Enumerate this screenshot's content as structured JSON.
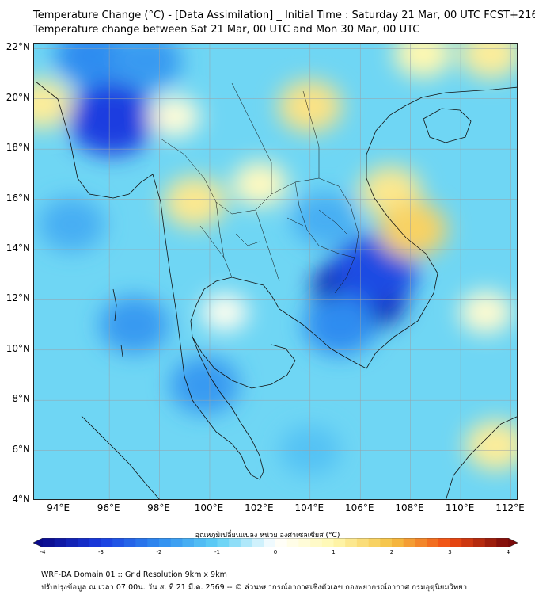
{
  "header": {
    "title_line1": "Temperature Change (°C) - [Data Assimilation] _ Initial Time : Saturday 21 Mar, 00 UTC FCST+216",
    "title_line2": "Temperature change between Sat 21 Mar, 00 UTC and Mon 30 Mar, 00 UTC"
  },
  "map": {
    "lat_labels": [
      "22°N",
      "20°N",
      "18°N",
      "16°N",
      "14°N",
      "12°N",
      "10°N",
      "8°N",
      "6°N",
      "4°N"
    ],
    "lat_values": [
      22,
      20,
      18,
      16,
      14,
      12,
      10,
      8,
      6,
      4
    ],
    "lon_labels": [
      "94°E",
      "96°E",
      "98°E",
      "100°E",
      "102°E",
      "104°E",
      "106°E",
      "108°E",
      "110°E",
      "112°E"
    ],
    "lon_values": [
      94,
      96,
      98,
      100,
      102,
      104,
      106,
      108,
      110,
      112
    ],
    "lon_range": [
      93,
      112.3
    ],
    "lat_range": [
      4,
      22.2
    ],
    "background_color": "#6fd6f4",
    "grid": true,
    "field_patches": [
      {
        "lon": 96.1,
        "lat": 19.2,
        "value": -3.0
      },
      {
        "lon": 95.3,
        "lat": 21.7,
        "value": -2.0
      },
      {
        "lon": 97.5,
        "lat": 21.5,
        "value": -1.8
      },
      {
        "lon": 106.0,
        "lat": 12.3,
        "value": -3.6
      },
      {
        "lon": 106.6,
        "lat": 13.2,
        "value": -2.8
      },
      {
        "lon": 105.2,
        "lat": 11.0,
        "value": -2.0
      },
      {
        "lon": 104.6,
        "lat": 15.2,
        "value": -1.5
      },
      {
        "lon": 97.0,
        "lat": 11.0,
        "value": -1.8
      },
      {
        "lon": 99.8,
        "lat": 8.6,
        "value": -1.8
      },
      {
        "lon": 104.0,
        "lat": 6.0,
        "value": -1.2
      },
      {
        "lon": 94.5,
        "lat": 15.0,
        "value": -1.5
      },
      {
        "lon": 104.0,
        "lat": 19.7,
        "value": 1.4
      },
      {
        "lon": 107.2,
        "lat": 16.3,
        "value": 1.3
      },
      {
        "lon": 108.1,
        "lat": 14.8,
        "value": 1.7
      },
      {
        "lon": 93.3,
        "lat": 19.8,
        "value": 1.2
      },
      {
        "lon": 99.4,
        "lat": 15.9,
        "value": 1.3
      },
      {
        "lon": 102.0,
        "lat": 16.6,
        "value": 0.8
      },
      {
        "lon": 111.2,
        "lat": 21.8,
        "value": 1.2
      },
      {
        "lon": 108.5,
        "lat": 21.8,
        "value": 1.0
      },
      {
        "lon": 111.4,
        "lat": 6.2,
        "value": 1.2
      },
      {
        "lon": 111.0,
        "lat": 11.5,
        "value": 0.6
      },
      {
        "lon": 100.6,
        "lat": 11.5,
        "value": 0.2
      },
      {
        "lon": 98.6,
        "lat": 19.3,
        "value": 0.5
      }
    ]
  },
  "colorbar": {
    "label": "อุณหภูมิเปลี่ยนแปลง หน่วย องศาเซลเซียส (°C)",
    "min": -4,
    "max": 4,
    "ticks": [
      "-4",
      "-3",
      "-2",
      "-1",
      "0",
      "1",
      "2",
      "3",
      "4"
    ],
    "tick_values": [
      -4,
      -3,
      -2,
      -1,
      0,
      1,
      2,
      3,
      4
    ],
    "colors": [
      "#0a0a8c",
      "#1a3ce0",
      "#2f8cf0",
      "#5fd0f5",
      "#ffffff",
      "#fff8b0",
      "#f5c142",
      "#f04a12",
      "#7a0a0a"
    ]
  },
  "footer": {
    "line1": "WRF-DA Domain 01 :: Grid Resolution 9km x 9km",
    "line2": "ปรับปรุงข้อมูล ณ เวลา 07:00น. วัน ส. ที่ 21 มี.ค. 2569 -- © ส่วนพยากรณ์อากาศเชิงตัวเลข กองพยากรณ์อากาศ กรมอุตุนิยมวิทยา"
  }
}
